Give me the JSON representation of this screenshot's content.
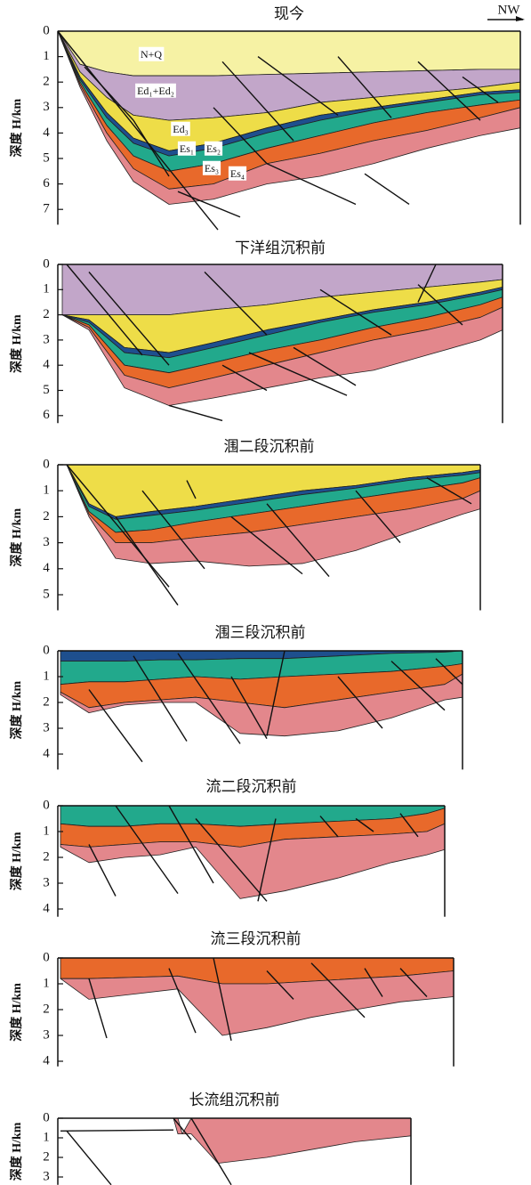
{
  "direction": "NW",
  "panels": [
    {
      "title": "现今",
      "y_label": "深度 H/km",
      "ticks": [
        0,
        1,
        2,
        3,
        4,
        5,
        6,
        7
      ],
      "labels": [
        "N+Q",
        "Ed₁+Ed₂",
        "Ed₃",
        "Es₁",
        "Es₂",
        "Es₃",
        "Es₄"
      ]
    },
    {
      "title": "下洋组沉积前",
      "y_label": "深度 H/km",
      "ticks": [
        0,
        1,
        2,
        3,
        4,
        5,
        6
      ]
    },
    {
      "title": "涠二段沉积前",
      "y_label": "深度 H/km",
      "ticks": [
        0,
        1,
        2,
        3,
        4,
        5
      ]
    },
    {
      "title": "涠三段沉积前",
      "y_label": "深度 H/km",
      "ticks": [
        0,
        1,
        2,
        3,
        4
      ]
    },
    {
      "title": "流二段沉积前",
      "y_label": "深度 H/km",
      "ticks": [
        0,
        1,
        2,
        3,
        4
      ]
    },
    {
      "title": "流三段沉积前",
      "y_label": "深度 H/km",
      "ticks": [
        0,
        1,
        2,
        3,
        4
      ]
    },
    {
      "title": "长流组沉积前",
      "y_label": "深度 H/km",
      "ticks": [
        0,
        1,
        2,
        3
      ]
    }
  ]
}
